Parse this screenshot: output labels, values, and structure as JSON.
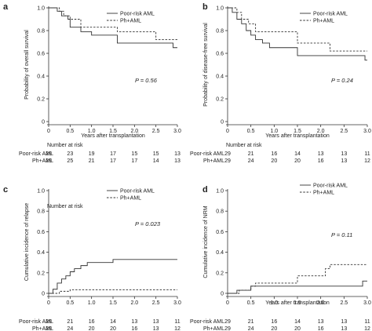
{
  "chart_data": [
    {
      "type": "line",
      "panel_label": "a",
      "xlabel": "Years after transplantation",
      "ylabel": "Probability of overall survival",
      "xlim": [
        0,
        3.0
      ],
      "ylim": [
        0,
        1.0
      ],
      "xticks": [
        "0",
        "0.5",
        "1.0",
        "1.5",
        "2.0",
        "2.5",
        "3.0"
      ],
      "yticks": [
        "0",
        "0.2",
        "0.4",
        "0.6",
        "0.8",
        "1.0"
      ],
      "p_value": "P = 0.56",
      "legend": [
        {
          "name": "Poor-risk AML",
          "style": "solid"
        },
        {
          "name": "Ph+AML",
          "style": "dashed"
        }
      ],
      "series": [
        {
          "name": "Poor-risk AML",
          "style": "solid",
          "x": [
            0,
            0.2,
            0.3,
            0.45,
            0.5,
            0.75,
            1.0,
            1.6,
            2.9,
            3.0
          ],
          "y": [
            1.0,
            0.97,
            0.93,
            0.9,
            0.83,
            0.79,
            0.76,
            0.69,
            0.65,
            0.65
          ]
        },
        {
          "name": "Ph+AML",
          "style": "dashed",
          "x": [
            0,
            0.25,
            0.35,
            0.5,
            0.75,
            1.6,
            2.5,
            3.0
          ],
          "y": [
            1.0,
            0.97,
            0.93,
            0.9,
            0.83,
            0.79,
            0.72,
            0.72
          ]
        }
      ],
      "risk_table": {
        "title": "Number at risk",
        "rows": [
          {
            "label": "Poor-risk AML",
            "values": [
              "29",
              "23",
              "19",
              "17",
              "15",
              "15",
              "13"
            ]
          },
          {
            "label": "Ph+AML",
            "values": [
              "29",
              "25",
              "21",
              "17",
              "17",
              "14",
              "13"
            ]
          }
        ]
      }
    },
    {
      "type": "line",
      "panel_label": "b",
      "xlabel": "Years after transplantation",
      "ylabel": "Probability of disease-free survival",
      "xlim": [
        0,
        3.0
      ],
      "ylim": [
        0,
        1.0
      ],
      "xticks": [
        "0",
        "0.5",
        "1.0",
        "1.5",
        "2.0",
        "2.5",
        "3.0"
      ],
      "yticks": [
        "0",
        "0.2",
        "0.4",
        "0.6",
        "0.8",
        "1.0"
      ],
      "p_value": "P = 0.24",
      "legend": [
        {
          "name": "Poor-risk AML",
          "style": "solid"
        },
        {
          "name": "Ph+AML",
          "style": "dashed"
        }
      ],
      "series": [
        {
          "name": "Poor-risk AML",
          "style": "solid",
          "x": [
            0,
            0.1,
            0.2,
            0.3,
            0.4,
            0.5,
            0.6,
            0.75,
            0.9,
            1.5,
            2.95,
            3.0
          ],
          "y": [
            1.0,
            0.96,
            0.9,
            0.86,
            0.8,
            0.76,
            0.72,
            0.69,
            0.65,
            0.58,
            0.54,
            0.54
          ]
        },
        {
          "name": "Ph+AML",
          "style": "dashed",
          "x": [
            0,
            0.2,
            0.3,
            0.45,
            0.6,
            1.5,
            2.2,
            2.5,
            3.0
          ],
          "y": [
            1.0,
            0.96,
            0.9,
            0.86,
            0.79,
            0.69,
            0.62,
            0.62,
            0.62
          ]
        }
      ],
      "risk_table": {
        "title": "Number at risk",
        "rows": [
          {
            "label": "Poor-risk AML",
            "values": [
              "29",
              "21",
              "16",
              "14",
              "13",
              "13",
              "11"
            ]
          },
          {
            "label": "Ph+AML",
            "values": [
              "29",
              "24",
              "20",
              "20",
              "16",
              "13",
              "12"
            ]
          }
        ]
      }
    },
    {
      "type": "line",
      "panel_label": "c",
      "xlabel": "",
      "ylabel": "Cumulative incidence of relapse",
      "xlim": [
        0,
        3.0
      ],
      "ylim": [
        0,
        1.0
      ],
      "xticks": [
        "0",
        "0.5",
        "1.0",
        "1.5",
        "2.0",
        "2.5",
        "3.0"
      ],
      "yticks": [
        "0",
        "0.2",
        "0.4",
        "0.6",
        "0.8",
        "1.0"
      ],
      "p_value": "P = 0.023",
      "legend": [
        {
          "name": "Poor-risk AML",
          "style": "solid"
        },
        {
          "name": "Ph+AML",
          "style": "dashed"
        }
      ],
      "series": [
        {
          "name": "Poor-risk AML",
          "style": "solid",
          "x": [
            0,
            0.1,
            0.2,
            0.3,
            0.4,
            0.5,
            0.6,
            0.75,
            0.9,
            1.5,
            3.0
          ],
          "y": [
            0,
            0.04,
            0.1,
            0.14,
            0.17,
            0.21,
            0.24,
            0.27,
            0.3,
            0.33,
            0.33
          ]
        },
        {
          "name": "Ph+AML",
          "style": "dashed",
          "x": [
            0,
            0.25,
            0.5,
            3.0
          ],
          "y": [
            0,
            0.02,
            0.035,
            0.035
          ]
        }
      ],
      "risk_table": {
        "title": "Number at risk",
        "rows": [
          {
            "label": "Poor-risk AML",
            "values": [
              "29",
              "21",
              "16",
              "14",
              "13",
              "13",
              "11"
            ]
          },
          {
            "label": "Ph+AML",
            "values": [
              "29",
              "24",
              "20",
              "20",
              "16",
              "13",
              "12"
            ]
          }
        ]
      }
    },
    {
      "type": "line",
      "panel_label": "d",
      "xlabel": "Years after transplantation",
      "ylabel": "Cumulative incidence of NRM",
      "xlim": [
        0,
        3.0
      ],
      "ylim": [
        0,
        1.0
      ],
      "xticks": [
        "0",
        "0.5",
        "1.0",
        "1.5",
        "2.0",
        "2.5",
        "3.0"
      ],
      "yticks": [
        "0",
        "0.2",
        "0.4",
        "0.6",
        "0.8",
        "1.0"
      ],
      "p_value": "P = 0.11",
      "legend": [
        {
          "name": "Poor-risk AML",
          "style": "solid"
        },
        {
          "name": "Ph+AML",
          "style": "dashed"
        }
      ],
      "series": [
        {
          "name": "Poor-risk AML",
          "style": "solid",
          "x": [
            0,
            0.2,
            0.5,
            2.9,
            3.0
          ],
          "y": [
            0,
            0.03,
            0.07,
            0.12,
            0.12
          ]
        },
        {
          "name": "Ph+AML",
          "style": "dashed",
          "x": [
            0,
            0.25,
            0.5,
            0.6,
            1.5,
            2.1,
            2.2,
            3.0
          ],
          "y": [
            0,
            0.03,
            0.07,
            0.1,
            0.17,
            0.24,
            0.28,
            0.28
          ]
        }
      ],
      "risk_table": {
        "title": "Number at risk",
        "rows": [
          {
            "label": "Poor-risk AML",
            "values": [
              "29",
              "21",
              "16",
              "14",
              "13",
              "13",
              "11"
            ]
          },
          {
            "label": "Ph+AML",
            "values": [
              "29",
              "24",
              "20",
              "20",
              "16",
              "13",
              "12"
            ]
          }
        ]
      }
    }
  ]
}
